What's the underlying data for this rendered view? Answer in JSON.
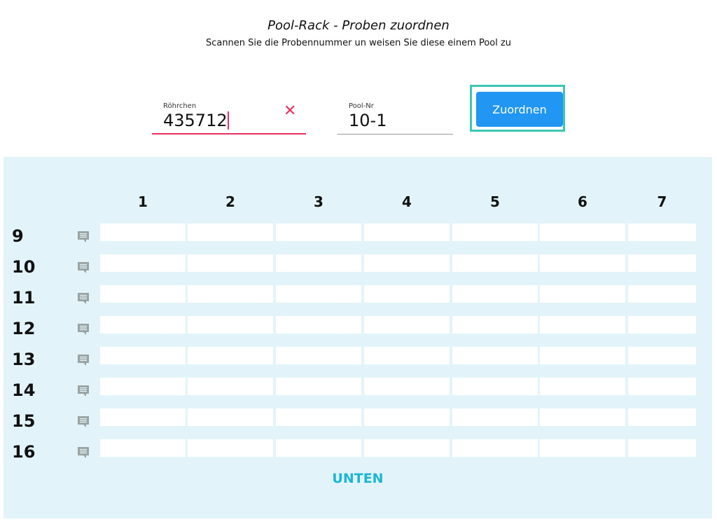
{
  "header": {
    "title": "Pool-Rack - Proben zuordnen",
    "subtitle": "Scannen Sie die Probennummer un weisen Sie diese einem Pool zu"
  },
  "form": {
    "tube_label": "Röhrchen",
    "tube_value": "435712",
    "pool_label": "Pool-Nr",
    "pool_value": "10-1",
    "assign_label": "Zuordnen",
    "clear_icon": "close-icon"
  },
  "colors": {
    "accent": "#2196f3",
    "error": "#e8315f",
    "focus": "#3cc6b4",
    "panel": "#e2f4f9",
    "link": "#1cb5d6"
  },
  "rack": {
    "columns": [
      "1",
      "2",
      "3",
      "4",
      "5",
      "6",
      "7"
    ],
    "rows": [
      "9",
      "10",
      "11",
      "12",
      "13",
      "14",
      "15",
      "16"
    ],
    "row_icon": "comment-icon",
    "footer_link": "UNTEN"
  }
}
